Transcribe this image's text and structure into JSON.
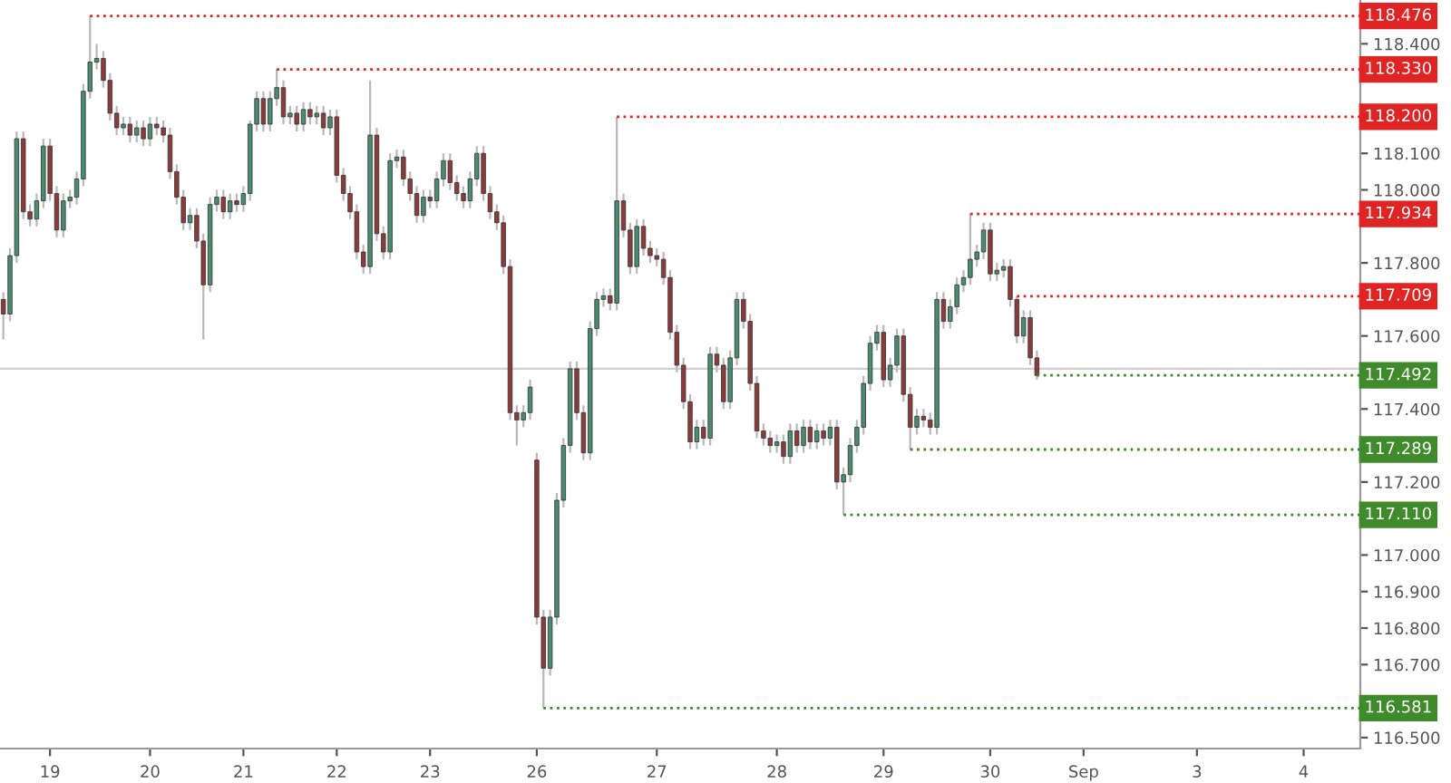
{
  "chart_data": {
    "type": "candlestick",
    "categories": [
      null,
      null,
      null,
      null,
      null,
      null,
      null,
      "19",
      null,
      null,
      null,
      null,
      null,
      null,
      null,
      null,
      null,
      null,
      null,
      null,
      null,
      null,
      "20",
      null,
      null,
      null,
      null,
      null,
      null,
      null,
      null,
      null,
      null,
      null,
      null,
      null,
      "21",
      null,
      null,
      null,
      null,
      null,
      null,
      null,
      null,
      null,
      null,
      null,
      null,
      null,
      "22",
      null,
      null,
      null,
      null,
      null,
      null,
      null,
      null,
      null,
      null,
      null,
      null,
      null,
      "23",
      null,
      null,
      null,
      null,
      null,
      null,
      null,
      null,
      null,
      null,
      null,
      null,
      null,
      null,
      null,
      "26",
      null,
      null,
      null,
      null,
      null,
      null,
      null,
      null,
      null,
      null,
      null,
      null,
      null,
      null,
      null,
      null,
      null,
      "27",
      null,
      null,
      null,
      null,
      null,
      null,
      null,
      null,
      null,
      null,
      null,
      null,
      null,
      null,
      null,
      null,
      null,
      "28",
      null,
      null,
      null,
      null,
      null,
      null,
      null,
      null,
      null,
      null,
      null,
      null,
      null,
      null,
      null,
      "29",
      null,
      null,
      null,
      null,
      null,
      null,
      null,
      null,
      null,
      null,
      null,
      null,
      null,
      null,
      null,
      "30",
      null,
      null,
      null,
      null,
      null,
      null,
      null,
      null,
      null,
      null,
      null,
      null,
      null,
      "Sep",
      null,
      null,
      null,
      null,
      null,
      null,
      null,
      null,
      null,
      null,
      null,
      null,
      null,
      null,
      null,
      null,
      "3",
      null,
      null,
      null,
      null,
      null,
      null,
      null,
      null,
      null,
      null,
      null,
      null,
      null,
      null,
      null,
      "4",
      null,
      null,
      null,
      null,
      null,
      null,
      null,
      null
    ],
    "ohlc": [
      [
        117.7,
        117.72,
        117.59,
        117.66
      ],
      [
        117.66,
        117.84,
        117.64,
        117.82
      ],
      [
        117.82,
        118.16,
        117.8,
        118.14
      ],
      [
        118.14,
        118.16,
        117.92,
        117.94
      ],
      [
        117.94,
        117.96,
        117.9,
        117.92
      ],
      [
        117.92,
        117.99,
        117.9,
        117.97
      ],
      [
        117.97,
        118.14,
        117.95,
        118.12
      ],
      [
        118.12,
        118.14,
        117.97,
        117.99
      ],
      [
        117.99,
        118.01,
        117.87,
        117.89
      ],
      [
        117.89,
        117.99,
        117.87,
        117.97
      ],
      [
        117.97,
        118.0,
        117.95,
        117.98
      ],
      [
        117.98,
        118.05,
        117.96,
        118.03
      ],
      [
        118.03,
        118.29,
        118.01,
        118.27
      ],
      [
        118.27,
        118.476,
        118.25,
        118.35
      ],
      [
        118.35,
        118.4,
        118.33,
        118.36
      ],
      [
        118.36,
        118.38,
        118.28,
        118.3
      ],
      [
        118.3,
        118.32,
        118.19,
        118.21
      ],
      [
        118.21,
        118.23,
        118.15,
        118.17
      ],
      [
        118.17,
        118.2,
        118.15,
        118.18
      ],
      [
        118.18,
        118.2,
        118.13,
        118.15
      ],
      [
        118.15,
        118.19,
        118.13,
        118.17
      ],
      [
        118.17,
        118.19,
        118.12,
        118.14
      ],
      [
        118.14,
        118.2,
        118.12,
        118.18
      ],
      [
        118.18,
        118.2,
        118.15,
        118.17
      ],
      [
        118.17,
        118.19,
        118.13,
        118.15
      ],
      [
        118.15,
        118.17,
        118.03,
        118.05
      ],
      [
        118.05,
        118.07,
        117.96,
        117.98
      ],
      [
        117.98,
        118.0,
        117.89,
        117.91
      ],
      [
        117.91,
        117.95,
        117.89,
        117.93
      ],
      [
        117.93,
        117.95,
        117.84,
        117.86
      ],
      [
        117.86,
        117.88,
        117.59,
        117.74
      ],
      [
        117.74,
        117.98,
        117.72,
        117.96
      ],
      [
        117.96,
        118.0,
        117.94,
        117.98
      ],
      [
        117.98,
        118.0,
        117.92,
        117.94
      ],
      [
        117.94,
        117.99,
        117.92,
        117.97
      ],
      [
        117.97,
        117.99,
        117.94,
        117.96
      ],
      [
        117.96,
        118.01,
        117.94,
        117.99
      ],
      [
        117.99,
        118.19,
        117.97,
        118.18
      ],
      [
        118.18,
        118.27,
        118.16,
        118.25
      ],
      [
        118.25,
        118.27,
        118.16,
        118.18
      ],
      [
        118.18,
        118.27,
        118.16,
        118.25
      ],
      [
        118.25,
        118.33,
        118.23,
        118.28
      ],
      [
        118.28,
        118.3,
        118.18,
        118.2
      ],
      [
        118.2,
        118.23,
        118.18,
        118.21
      ],
      [
        118.21,
        118.23,
        118.16,
        118.18
      ],
      [
        118.18,
        118.24,
        118.16,
        118.22
      ],
      [
        118.22,
        118.24,
        118.18,
        118.2
      ],
      [
        118.2,
        118.23,
        118.18,
        118.21
      ],
      [
        118.21,
        118.23,
        118.15,
        118.17
      ],
      [
        118.17,
        118.22,
        118.15,
        118.2
      ],
      [
        118.2,
        118.22,
        118.02,
        118.04
      ],
      [
        118.04,
        118.06,
        117.97,
        117.99
      ],
      [
        117.99,
        118.01,
        117.92,
        117.94
      ],
      [
        117.94,
        117.96,
        117.81,
        117.83
      ],
      [
        117.83,
        117.85,
        117.77,
        117.79
      ],
      [
        117.79,
        118.3,
        117.77,
        118.15
      ],
      [
        118.15,
        118.17,
        117.86,
        117.88
      ],
      [
        117.88,
        117.9,
        117.81,
        117.83
      ],
      [
        117.83,
        118.1,
        117.81,
        118.08
      ],
      [
        118.08,
        118.11,
        118.06,
        118.09
      ],
      [
        118.09,
        118.11,
        118.01,
        118.03
      ],
      [
        118.03,
        118.05,
        117.97,
        117.99
      ],
      [
        117.99,
        118.01,
        117.91,
        117.93
      ],
      [
        117.93,
        118.0,
        117.91,
        117.98
      ],
      [
        117.98,
        118.0,
        117.95,
        117.97
      ],
      [
        117.97,
        118.05,
        117.95,
        118.03
      ],
      [
        118.03,
        118.1,
        118.01,
        118.08
      ],
      [
        118.08,
        118.1,
        118.0,
        118.02
      ],
      [
        118.02,
        118.04,
        117.97,
        117.99
      ],
      [
        117.99,
        118.01,
        117.95,
        117.97
      ],
      [
        117.97,
        118.05,
        117.95,
        118.03
      ],
      [
        118.03,
        118.12,
        118.01,
        118.1
      ],
      [
        118.1,
        118.12,
        117.97,
        117.99
      ],
      [
        117.99,
        118.01,
        117.92,
        117.94
      ],
      [
        117.94,
        117.96,
        117.89,
        117.91
      ],
      [
        117.91,
        117.93,
        117.77,
        117.79
      ],
      [
        117.79,
        117.81,
        117.37,
        117.39
      ],
      [
        117.39,
        117.41,
        117.3,
        117.37
      ],
      [
        117.37,
        117.41,
        117.35,
        117.39
      ],
      [
        117.39,
        117.48,
        117.37,
        117.46
      ],
      [
        117.26,
        117.28,
        116.81,
        116.83
      ],
      [
        116.83,
        116.85,
        116.581,
        116.69
      ],
      [
        116.69,
        116.85,
        116.67,
        116.83
      ],
      [
        116.83,
        117.17,
        116.81,
        117.15
      ],
      [
        117.15,
        117.32,
        117.13,
        117.3
      ],
      [
        117.3,
        117.53,
        117.28,
        117.51
      ],
      [
        117.51,
        117.53,
        117.37,
        117.39
      ],
      [
        117.39,
        117.41,
        117.26,
        117.28
      ],
      [
        117.28,
        117.64,
        117.26,
        117.62
      ],
      [
        117.62,
        117.72,
        117.6,
        117.7
      ],
      [
        117.7,
        117.73,
        117.68,
        117.71
      ],
      [
        117.71,
        117.73,
        117.67,
        117.69
      ],
      [
        117.69,
        118.2,
        117.67,
        117.97
      ],
      [
        117.97,
        117.99,
        117.87,
        117.89
      ],
      [
        117.89,
        117.91,
        117.77,
        117.79
      ],
      [
        117.79,
        117.92,
        117.77,
        117.9
      ],
      [
        117.9,
        117.92,
        117.82,
        117.84
      ],
      [
        117.84,
        117.86,
        117.8,
        117.82
      ],
      [
        117.82,
        117.84,
        117.79,
        117.81
      ],
      [
        117.81,
        117.83,
        117.74,
        117.76
      ],
      [
        117.76,
        117.78,
        117.59,
        117.61
      ],
      [
        117.61,
        117.63,
        117.5,
        117.52
      ],
      [
        117.52,
        117.54,
        117.4,
        117.42
      ],
      [
        117.42,
        117.44,
        117.29,
        117.31
      ],
      [
        117.31,
        117.37,
        117.29,
        117.35
      ],
      [
        117.35,
        117.37,
        117.3,
        117.32
      ],
      [
        117.32,
        117.57,
        117.3,
        117.55
      ],
      [
        117.55,
        117.57,
        117.5,
        117.52
      ],
      [
        117.52,
        117.54,
        117.4,
        117.42
      ],
      [
        117.42,
        117.56,
        117.4,
        117.54
      ],
      [
        117.54,
        117.72,
        117.52,
        117.7
      ],
      [
        117.7,
        117.72,
        117.62,
        117.64
      ],
      [
        117.64,
        117.66,
        117.45,
        117.47
      ],
      [
        117.47,
        117.49,
        117.32,
        117.34
      ],
      [
        117.34,
        117.36,
        117.3,
        117.32
      ],
      [
        117.32,
        117.34,
        117.28,
        117.3
      ],
      [
        117.3,
        117.33,
        117.28,
        117.31
      ],
      [
        117.31,
        117.33,
        117.25,
        117.27
      ],
      [
        117.27,
        117.36,
        117.25,
        117.34
      ],
      [
        117.34,
        117.36,
        117.28,
        117.3
      ],
      [
        117.3,
        117.37,
        117.28,
        117.35
      ],
      [
        117.35,
        117.37,
        117.29,
        117.31
      ],
      [
        117.31,
        117.36,
        117.29,
        117.34
      ],
      [
        117.34,
        117.36,
        117.3,
        117.32
      ],
      [
        117.32,
        117.37,
        117.3,
        117.35
      ],
      [
        117.35,
        117.37,
        117.18,
        117.2
      ],
      [
        117.2,
        117.24,
        117.11,
        117.22
      ],
      [
        117.22,
        117.32,
        117.2,
        117.3
      ],
      [
        117.3,
        117.37,
        117.28,
        117.35
      ],
      [
        117.35,
        117.49,
        117.33,
        117.47
      ],
      [
        117.47,
        117.6,
        117.45,
        117.58
      ],
      [
        117.58,
        117.63,
        117.56,
        117.61
      ],
      [
        117.61,
        117.63,
        117.46,
        117.48
      ],
      [
        117.48,
        117.54,
        117.46,
        117.52
      ],
      [
        117.52,
        117.62,
        117.5,
        117.6
      ],
      [
        117.6,
        117.62,
        117.42,
        117.44
      ],
      [
        117.44,
        117.46,
        117.289,
        117.35
      ],
      [
        117.35,
        117.4,
        117.33,
        117.38
      ],
      [
        117.38,
        117.4,
        117.35,
        117.37
      ],
      [
        117.37,
        117.39,
        117.33,
        117.35
      ],
      [
        117.35,
        117.72,
        117.33,
        117.7
      ],
      [
        117.7,
        117.72,
        117.62,
        117.64
      ],
      [
        117.64,
        117.7,
        117.62,
        117.68
      ],
      [
        117.68,
        117.76,
        117.66,
        117.74
      ],
      [
        117.74,
        117.78,
        117.72,
        117.76
      ],
      [
        117.76,
        117.934,
        117.74,
        117.81
      ],
      [
        117.81,
        117.85,
        117.79,
        117.83
      ],
      [
        117.83,
        117.91,
        117.81,
        117.89
      ],
      [
        117.89,
        117.91,
        117.75,
        117.77
      ],
      [
        117.77,
        117.8,
        117.75,
        117.78
      ],
      [
        117.78,
        117.81,
        117.76,
        117.79
      ],
      [
        117.79,
        117.81,
        117.68,
        117.7
      ],
      [
        117.7,
        117.709,
        117.58,
        117.6
      ],
      [
        117.6,
        117.67,
        117.58,
        117.65
      ],
      [
        117.65,
        117.67,
        117.52,
        117.54
      ],
      [
        117.54,
        117.56,
        117.48,
        117.492
      ],
      null,
      null,
      null,
      null,
      null,
      null,
      null,
      null,
      null,
      null,
      null,
      null,
      null,
      null,
      null,
      null,
      null,
      null,
      null,
      null,
      null,
      null,
      null,
      null,
      null,
      null,
      null,
      null,
      null,
      null,
      null,
      null,
      null,
      null,
      null,
      null,
      null,
      null,
      null,
      null,
      null,
      null,
      null,
      null,
      null,
      null,
      null,
      null
    ],
    "colors": [
      "#8c3b3b",
      "#4a8c6f",
      "#4a8c6f",
      "#8c3b3b",
      "#8c3b3b",
      "#4a8c6f",
      "#4a8c6f",
      "#8c3b3b",
      "#8c3b3b",
      "#4a8c6f",
      "#4a8c6f",
      "#4a8c6f",
      "#4a8c6f",
      "#4a8c6f",
      "#4a8c6f",
      "#8c3b3b",
      "#8c3b3b",
      "#8c3b3b",
      "#4a8c6f",
      "#8c3b3b",
      "#4a8c6f",
      "#8c3b3b",
      "#4a8c6f",
      "#8c3b3b",
      "#8c3b3b",
      "#8c3b3b",
      "#8c3b3b",
      "#8c3b3b",
      "#4a8c6f",
      "#8c3b3b",
      "#8c3b3b",
      "#4a8c6f",
      "#4a8c6f",
      "#8c3b3b",
      "#4a8c6f",
      "#8c3b3b",
      "#4a8c6f",
      "#4a8c6f",
      "#4a8c6f",
      "#8c3b3b",
      "#4a8c6f",
      "#4a8c6f",
      "#8c3b3b",
      "#4a8c6f",
      "#8c3b3b",
      "#4a8c6f",
      "#8c3b3b",
      "#4a8c6f",
      "#8c3b3b",
      "#4a8c6f",
      "#8c3b3b",
      "#8c3b3b",
      "#8c3b3b",
      "#8c3b3b",
      "#8c3b3b",
      "#4a8c6f",
      "#8c3b3b",
      "#8c3b3b",
      "#4a8c6f",
      "#4a8c6f",
      "#8c3b3b",
      "#8c3b3b",
      "#8c3b3b",
      "#4a8c6f",
      "#8c3b3b",
      "#4a8c6f",
      "#4a8c6f",
      "#8c3b3b",
      "#8c3b3b",
      "#8c3b3b",
      "#4a8c6f",
      "#4a8c6f",
      "#8c3b3b",
      "#8c3b3b",
      "#8c3b3b",
      "#8c3b3b",
      "#8c3b3b",
      "#8c3b3b",
      "#4a8c6f",
      "#4a8c6f",
      "#8c3b3b",
      "#8c3b3b",
      "#4a8c6f",
      "#4a8c6f",
      "#4a8c6f",
      "#4a8c6f",
      "#8c3b3b",
      "#8c3b3b",
      "#4a8c6f",
      "#4a8c6f",
      "#4a8c6f",
      "#8c3b3b",
      "#4a8c6f",
      "#8c3b3b",
      "#8c3b3b",
      "#4a8c6f",
      "#8c3b3b",
      "#8c3b3b",
      "#8c3b3b",
      "#8c3b3b",
      "#8c3b3b",
      "#8c3b3b",
      "#8c3b3b",
      "#8c3b3b",
      "#4a8c6f",
      "#8c3b3b",
      "#4a8c6f",
      "#8c3b3b",
      "#8c3b3b",
      "#4a8c6f",
      "#4a8c6f",
      "#8c3b3b",
      "#8c3b3b",
      "#8c3b3b",
      "#8c3b3b",
      "#8c3b3b",
      "#4a8c6f",
      "#8c3b3b",
      "#4a8c6f",
      "#8c3b3b",
      "#4a8c6f",
      "#8c3b3b",
      "#4a8c6f",
      "#8c3b3b",
      "#4a8c6f",
      "#8c3b3b",
      "#4a8c6f",
      "#4a8c6f",
      "#4a8c6f",
      "#4a8c6f",
      "#4a8c6f",
      "#4a8c6f",
      "#8c3b3b",
      "#4a8c6f",
      "#4a8c6f",
      "#8c3b3b",
      "#8c3b3b",
      "#4a8c6f",
      "#8c3b3b",
      "#8c3b3b",
      "#4a8c6f",
      "#8c3b3b",
      "#4a8c6f",
      "#4a8c6f",
      "#4a8c6f",
      "#4a8c6f",
      "#4a8c6f",
      "#4a8c6f",
      "#8c3b3b",
      "#4a8c6f",
      "#4a8c6f",
      "#8c3b3b",
      "#8c3b3b",
      "#4a8c6f",
      "#8c3b3b",
      "#8c3b3b",
      null,
      null,
      null,
      null,
      null,
      null,
      null,
      null,
      null,
      null,
      null,
      null,
      null,
      null,
      null,
      null,
      null,
      null,
      null,
      null,
      null,
      null,
      null,
      null,
      null,
      null,
      null,
      null,
      null,
      null,
      null,
      null,
      null,
      null,
      null,
      null,
      null,
      null,
      null,
      null,
      null,
      null,
      null,
      null,
      null,
      null,
      null,
      null
    ],
    "ylim": [
      116.47,
      118.52
    ],
    "yticks": [
      {
        "value": 116.5,
        "label": "116.500"
      },
      {
        "value": 116.7,
        "label": "116.700"
      },
      {
        "value": 116.8,
        "label": "116.800"
      },
      {
        "value": 116.9,
        "label": "116.900"
      },
      {
        "value": 117.0,
        "label": "117.000"
      },
      {
        "value": 117.2,
        "label": "117.200"
      },
      {
        "value": 117.4,
        "label": "117.400"
      },
      {
        "value": 117.6,
        "label": "117.600"
      },
      {
        "value": 117.8,
        "label": "117.800"
      },
      {
        "value": 118.0,
        "label": "118.000"
      },
      {
        "value": 118.1,
        "label": "118.100"
      },
      {
        "value": 118.4,
        "label": "118.400"
      }
    ],
    "ref_lines": [
      {
        "axis": "y",
        "value": 118.476,
        "label": "118.476",
        "color": "#e02424",
        "line_style": "dotted"
      },
      {
        "axis": "y",
        "value": 118.33,
        "label": "118.330",
        "color": "#e02424",
        "line_style": "dotted"
      },
      {
        "axis": "y",
        "value": 118.2,
        "label": "118.200",
        "color": "#e02424",
        "line_style": "dotted"
      },
      {
        "axis": "y",
        "value": 117.934,
        "label": "117.934",
        "color": "#e02424",
        "line_style": "dotted"
      },
      {
        "axis": "y",
        "value": 117.709,
        "label": "117.709",
        "color": "#e02424",
        "line_style": "dotted"
      },
      {
        "axis": "y",
        "value": 117.492,
        "label": "117.492",
        "color": "#3f8a2a",
        "line_style": "dotted"
      },
      {
        "axis": "y",
        "value": 117.289,
        "label": "117.289",
        "color": "#3f8a2a",
        "line_style": "dotted"
      },
      {
        "axis": "y",
        "value": 117.11,
        "label": "117.110",
        "color": "#3f8a2a",
        "line_style": "dotted"
      },
      {
        "axis": "y",
        "value": 116.581,
        "label": "116.581",
        "color": "#3f8a2a",
        "line_style": "dotted"
      },
      {
        "axis": "y",
        "value": 117.51,
        "color": "#d0d0d0",
        "line_style": "solid"
      }
    ],
    "grid": false,
    "legend": false
  }
}
